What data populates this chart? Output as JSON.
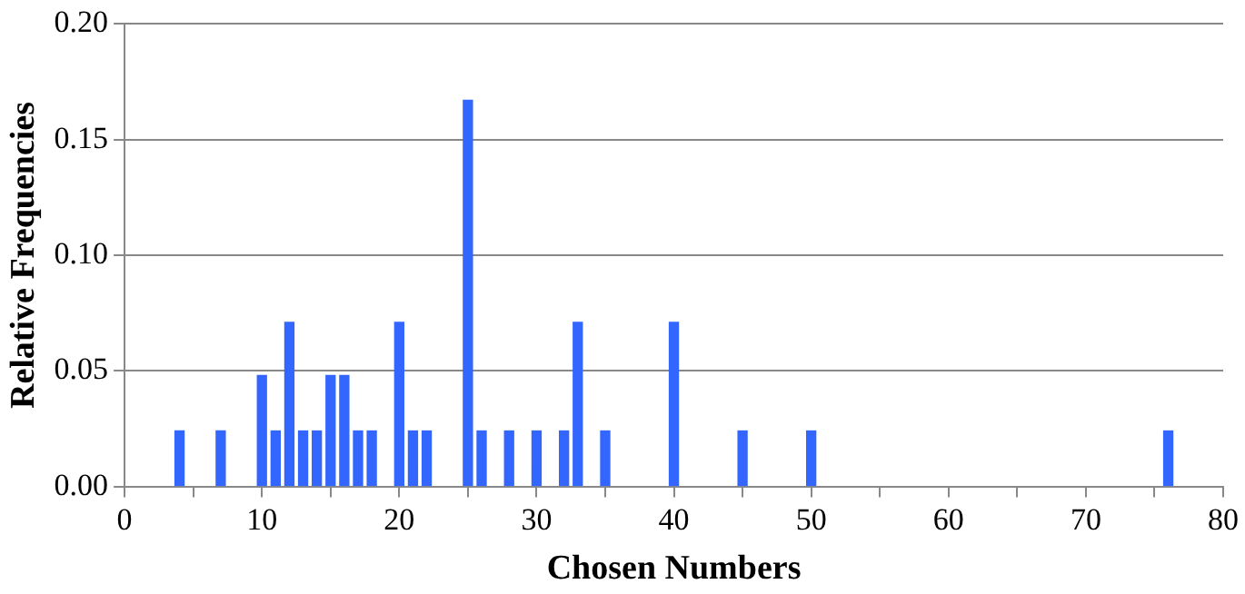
{
  "chart_data": {
    "type": "bar",
    "xlabel": "Chosen Numbers",
    "ylabel": "Relative Frequencies",
    "x": [
      4,
      7,
      10,
      11,
      12,
      13,
      14,
      15,
      16,
      17,
      18,
      20,
      21,
      22,
      25,
      26,
      28,
      30,
      32,
      33,
      35,
      40,
      45,
      50,
      76
    ],
    "values": [
      0.024,
      0.024,
      0.048,
      0.024,
      0.071,
      0.024,
      0.024,
      0.048,
      0.048,
      0.024,
      0.024,
      0.071,
      0.024,
      0.024,
      0.167,
      0.024,
      0.024,
      0.024,
      0.024,
      0.071,
      0.024,
      0.071,
      0.024,
      0.024,
      0.024
    ],
    "color": "#3366ff",
    "xlim": [
      0,
      80
    ],
    "xticks": [
      0,
      {
        "value": 5,
        "label": null
      },
      10,
      {
        "value": 15,
        "label": null
      },
      20,
      {
        "value": 25,
        "label": null
      },
      30,
      {
        "value": 35,
        "label": null
      },
      40,
      {
        "value": 45,
        "label": null
      },
      50,
      {
        "value": 55,
        "label": null
      },
      60,
      {
        "value": 65,
        "label": null
      },
      70,
      {
        "value": 75,
        "label": null
      },
      80
    ],
    "ylim": [
      0,
      0.2
    ],
    "yticks": [
      {
        "value": 0,
        "label": "0.00"
      },
      {
        "value": 0.05,
        "label": "0.05"
      },
      {
        "value": 0.1,
        "label": "0.10"
      },
      {
        "value": 0.15,
        "label": "0.15"
      },
      {
        "value": 0.2,
        "label": "0.20"
      }
    ],
    "grid": "y"
  }
}
